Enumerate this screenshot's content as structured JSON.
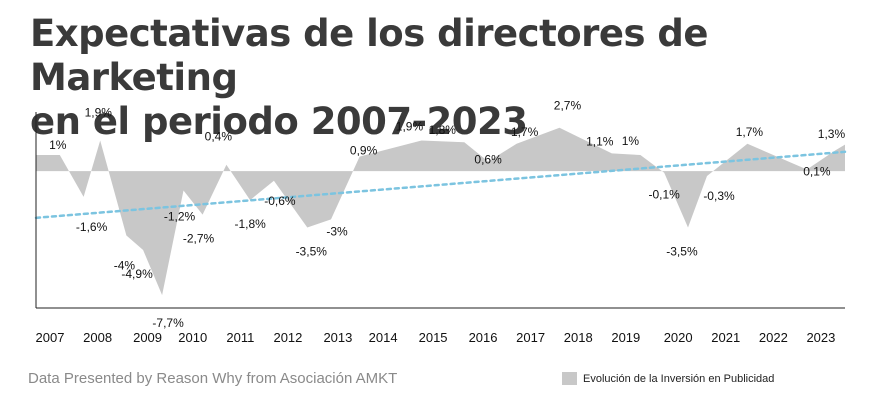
{
  "title_line1": "Expectativas de los directores de Marketing",
  "title_line2": "en el periodo 2007-2023",
  "source": "Data Presented by Reason Why from Asociación AMKT",
  "chart_data": {
    "type": "area",
    "series": [
      {
        "name": "Evolución de la Inversión en Publicidad",
        "color": "#c8c8c8",
        "points": [
          {
            "x": 2007.0,
            "y": 1.0,
            "label": "1%"
          },
          {
            "x": 2007.5,
            "y": -1.6,
            "label": "-1,6%"
          },
          {
            "x": 2007.85,
            "y": 1.9,
            "label": "1,9%"
          },
          {
            "x": 2008.4,
            "y": -4.0,
            "label": "-4%"
          },
          {
            "x": 2008.75,
            "y": -4.9,
            "label": "-4,9%"
          },
          {
            "x": 2009.15,
            "y": -7.7,
            "label": "-7,7%"
          },
          {
            "x": 2009.6,
            "y": -1.2,
            "label": "-1,2%"
          },
          {
            "x": 2010.0,
            "y": -2.7,
            "label": "-2,7%"
          },
          {
            "x": 2010.5,
            "y": 0.4,
            "label": "0,4%"
          },
          {
            "x": 2011.0,
            "y": -1.8,
            "label": "-1,8%"
          },
          {
            "x": 2011.5,
            "y": -0.6,
            "label": "-0,6%"
          },
          {
            "x": 2012.2,
            "y": -3.5,
            "label": "-3,5%"
          },
          {
            "x": 2012.7,
            "y": -3.0,
            "label": "-3%"
          },
          {
            "x": 2013.3,
            "y": 0.9,
            "label": "0,9%"
          },
          {
            "x": 2014.6,
            "y": 1.9,
            "label": "1,9%"
          },
          {
            "x": 2015.5,
            "y": 1.8,
            "label": "1,8%"
          },
          {
            "x": 2016.0,
            "y": 0.6,
            "label": "0,6%"
          },
          {
            "x": 2016.6,
            "y": 1.7,
            "label": "1,7%"
          },
          {
            "x": 2017.5,
            "y": 2.7,
            "label": "2,7%"
          },
          {
            "x": 2018.6,
            "y": 1.1,
            "label": "1,1%"
          },
          {
            "x": 2019.2,
            "y": 1.0,
            "label": "1%"
          },
          {
            "x": 2019.7,
            "y": -0.1,
            "label": "-0,1%"
          },
          {
            "x": 2020.2,
            "y": -3.5,
            "label": "-3,5%"
          },
          {
            "x": 2020.6,
            "y": -0.3,
            "label": "-0,3%"
          },
          {
            "x": 2021.45,
            "y": 1.7,
            "label": "1,7%"
          },
          {
            "x": 2022.7,
            "y": 0.1,
            "label": "0,1%"
          },
          {
            "x": 2023.3,
            "y": 1.3,
            "label": "1,3%"
          }
        ]
      }
    ],
    "trendline": {
      "style": "dotted",
      "color": "#7cc4e0",
      "start": {
        "x": 2006.5,
        "y": -2.9
      },
      "end": {
        "x": 2023.5,
        "y": 1.2
      }
    },
    "x_ticks": [
      "2007",
      "2008",
      "2009",
      "2010",
      "2011",
      "2012",
      "2013",
      "2014",
      "2015",
      "2016",
      "2017",
      "2018",
      "2019",
      "2020",
      "2021",
      "2022",
      "2023"
    ],
    "x_tick_values": [
      2006.5,
      2007.5,
      2008.55,
      2009.5,
      2010.5,
      2011.5,
      2012.55,
      2013.5,
      2014.55,
      2015.6,
      2016.6,
      2017.6,
      2018.6,
      2019.7,
      2020.7,
      2021.7,
      2022.7
    ],
    "xlim": [
      2006.5,
      2023.5
    ],
    "ylim": [
      -8.5,
      3.3
    ],
    "legend_position": "bottom-right",
    "grid": false
  }
}
